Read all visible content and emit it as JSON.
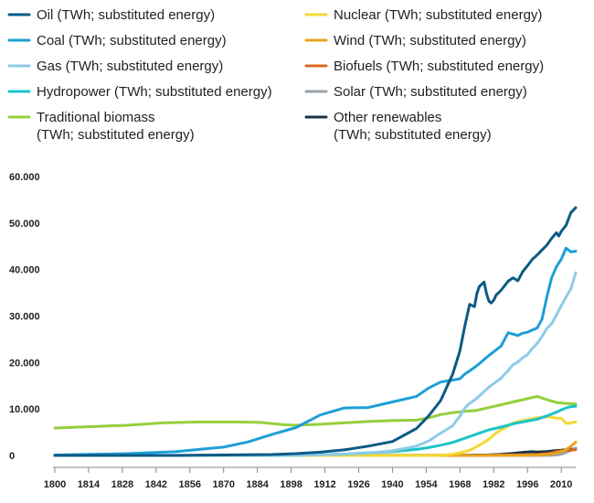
{
  "chart_data": {
    "type": "line",
    "title": "",
    "xlabel": "",
    "ylabel": "",
    "xlim": [
      1800,
      2016
    ],
    "ylim": [
      0,
      60000
    ],
    "grid": false,
    "legend_position": "top",
    "y_ticks": [
      {
        "value": 0,
        "label": "0"
      },
      {
        "value": 10000,
        "label": "10.000"
      },
      {
        "value": 20000,
        "label": "20.000"
      },
      {
        "value": 30000,
        "label": "30.000"
      },
      {
        "value": 40000,
        "label": "40.000"
      },
      {
        "value": 50000,
        "label": "50.000"
      },
      {
        "value": 60000,
        "label": "60.000"
      }
    ],
    "x_ticks": [
      "1800",
      "1814",
      "1828",
      "1842",
      "1856",
      "1870",
      "1884",
      "1898",
      "1912",
      "1926",
      "1940",
      "1954",
      "1968",
      "1982",
      "1996",
      "2010"
    ],
    "series": [
      {
        "name": "Oil (TWh; substituted energy)",
        "color": "#0d5a85",
        "x": [
          1800,
          1850,
          1890,
          1900,
          1910,
          1920,
          1930,
          1940,
          1950,
          1955,
          1960,
          1965,
          1968,
          1970,
          1972,
          1974,
          1975,
          1976,
          1978,
          1979,
          1980,
          1981,
          1982,
          1983,
          1984,
          1985,
          1988,
          1990,
          1992,
          1994,
          1996,
          1998,
          2000,
          2002,
          2004,
          2006,
          2008,
          2009,
          2010,
          2012,
          2014,
          2016
        ],
        "y": [
          0,
          0,
          200,
          400,
          700,
          1200,
          2000,
          3000,
          5800,
          8500,
          11800,
          17500,
          22500,
          27800,
          32500,
          32000,
          34800,
          36300,
          37300,
          34800,
          33200,
          32800,
          33400,
          34500,
          35000,
          35500,
          37500,
          38200,
          37600,
          39500,
          40800,
          42200,
          43100,
          44200,
          45200,
          46700,
          47900,
          47200,
          48200,
          49500,
          52200,
          53300
        ]
      },
      {
        "name": "Coal (TWh; substituted energy)",
        "color": "#1e9fd6",
        "x": [
          1800,
          1830,
          1850,
          1870,
          1880,
          1890,
          1900,
          1910,
          1920,
          1930,
          1940,
          1950,
          1955,
          1960,
          1965,
          1968,
          1970,
          1972,
          1975,
          1980,
          1985,
          1988,
          1990,
          1992,
          1994,
          1996,
          1998,
          2000,
          2002,
          2004,
          2006,
          2008,
          2010,
          2012,
          2014,
          2016
        ],
        "y": [
          100,
          400,
          800,
          1800,
          2900,
          4500,
          6000,
          8700,
          10200,
          10300,
          11500,
          12700,
          14500,
          15800,
          16200,
          16500,
          17500,
          18200,
          19300,
          21500,
          23500,
          26400,
          26100,
          25800,
          26300,
          26500,
          27000,
          27400,
          29300,
          34000,
          38200,
          40600,
          42200,
          44600,
          43800,
          43900
        ]
      },
      {
        "name": "Gas (TWh; substituted energy)",
        "color": "#8ecbe8",
        "x": [
          1800,
          1900,
          1920,
          1930,
          1940,
          1950,
          1955,
          1960,
          1965,
          1968,
          1970,
          1972,
          1975,
          1980,
          1985,
          1988,
          1990,
          1992,
          1994,
          1996,
          1998,
          2000,
          2002,
          2004,
          2006,
          2008,
          2010,
          2012,
          2014,
          2016
        ],
        "y": [
          0,
          60,
          300,
          500,
          1000,
          2000,
          3100,
          4800,
          6400,
          8500,
          10200,
          11200,
          12300,
          14700,
          16600,
          18300,
          19500,
          20100,
          21000,
          21700,
          23000,
          24100,
          25600,
          27300,
          28300,
          30200,
          32200,
          34100,
          35800,
          39300
        ]
      },
      {
        "name": "Hydropower (TWh; substituted energy)",
        "color": "#1cc4c9",
        "x": [
          1800,
          1900,
          1920,
          1940,
          1950,
          1955,
          1960,
          1965,
          1970,
          1975,
          1980,
          1985,
          1990,
          1995,
          2000,
          2005,
          2008,
          2010,
          2012,
          2014,
          2016
        ],
        "y": [
          0,
          20,
          300,
          800,
          1300,
          1700,
          2200,
          2800,
          3700,
          4600,
          5500,
          6100,
          6800,
          7300,
          7800,
          8700,
          9300,
          9800,
          10200,
          10500,
          10600
        ]
      },
      {
        "name": "Traditional biomass (TWh; substituted energy)",
        "color": "#95cf3c",
        "x": [
          1800,
          1815,
          1830,
          1845,
          1860,
          1875,
          1885,
          1895,
          1900,
          1910,
          1920,
          1930,
          1940,
          1950,
          1955,
          1960,
          1965,
          1970,
          1975,
          1980,
          1985,
          1990,
          1995,
          2000,
          2004,
          2008,
          2012,
          2016
        ],
        "y": [
          5900,
          6200,
          6500,
          7000,
          7200,
          7200,
          7100,
          6600,
          6500,
          6700,
          7000,
          7300,
          7500,
          7600,
          8100,
          8800,
          9200,
          9500,
          9700,
          10300,
          10900,
          11500,
          12100,
          12700,
          12000,
          11400,
          11200,
          11100
        ]
      },
      {
        "name": "Nuclear (TWh; substituted energy)",
        "color": "#f5d834",
        "x": [
          1800,
          1955,
          1960,
          1965,
          1970,
          1972,
          1975,
          1978,
          1980,
          1982,
          1985,
          1988,
          1990,
          1993,
          1996,
          1999,
          2001,
          2004,
          2006,
          2008,
          2010,
          2011,
          2012,
          2013,
          2014,
          2016
        ],
        "y": [
          0,
          0,
          50,
          250,
          800,
          1100,
          1900,
          2800,
          3500,
          4400,
          5500,
          6300,
          7000,
          7400,
          7700,
          8000,
          8200,
          8300,
          8200,
          8000,
          8000,
          7500,
          6900,
          6900,
          7000,
          7200
        ]
      },
      {
        "name": "Wind (TWh; substituted energy)",
        "color": "#e8a31d",
        "x": [
          1800,
          1990,
          1995,
          2000,
          2004,
          2007,
          2009,
          2011,
          2012,
          2013,
          2014,
          2015,
          2016
        ],
        "y": [
          0,
          10,
          30,
          90,
          200,
          400,
          700,
          1000,
          1300,
          1600,
          2000,
          2400,
          2900
        ]
      },
      {
        "name": "Biofuels (TWh; substituted energy)",
        "color": "#d96a1e",
        "x": [
          1800,
          1975,
          1985,
          1995,
          2000,
          2005,
          2008,
          2010,
          2012,
          2014,
          2016
        ],
        "y": [
          0,
          0,
          100,
          150,
          200,
          450,
          800,
          1000,
          1100,
          1150,
          1250
        ]
      },
      {
        "name": "Solar (TWh; substituted energy)",
        "color": "#9aa3a9",
        "x": [
          1800,
          2000,
          2005,
          2009,
          2010,
          2011,
          2012,
          2013,
          2014,
          2015,
          2016
        ],
        "y": [
          0,
          5,
          20,
          150,
          250,
          450,
          650,
          850,
          1100,
          1400,
          1600
        ]
      },
      {
        "name": "Other renewables (TWh; substituted energy)",
        "color": "#1a3347",
        "x": [
          1800,
          1960,
          1970,
          1980,
          1985,
          1990,
          1995,
          1998,
          2000,
          2004,
          2007,
          2010,
          2012,
          2014,
          2016
        ],
        "y": [
          0,
          20,
          60,
          120,
          250,
          450,
          700,
          800,
          750,
          850,
          1000,
          1150,
          1250,
          1350,
          1400
        ]
      }
    ],
    "legend": [
      {
        "lines": [
          "Oil (TWh; substituted energy)"
        ],
        "color": "#0d5a85"
      },
      {
        "lines": [
          "Nuclear (TWh; substituted energy)"
        ],
        "color": "#f5d834"
      },
      {
        "lines": [
          "Coal (TWh; substituted energy)"
        ],
        "color": "#1e9fd6"
      },
      {
        "lines": [
          "Wind (TWh; substituted energy)"
        ],
        "color": "#e8a31d"
      },
      {
        "lines": [
          "Gas (TWh; substituted energy)"
        ],
        "color": "#8ecbe8"
      },
      {
        "lines": [
          "Biofuels (TWh; substituted energy)"
        ],
        "color": "#d96a1e"
      },
      {
        "lines": [
          "Hydropower (TWh; substituted energy)"
        ],
        "color": "#1cc4c9"
      },
      {
        "lines": [
          "Solar (TWh; substituted energy)"
        ],
        "color": "#9aa3a9"
      },
      {
        "lines": [
          "Traditional biomass",
          "(TWh; substituted energy)"
        ],
        "color": "#95cf3c"
      },
      {
        "lines": [
          "Other renewables",
          "(TWh; substituted energy)"
        ],
        "color": "#1a3347"
      }
    ]
  }
}
